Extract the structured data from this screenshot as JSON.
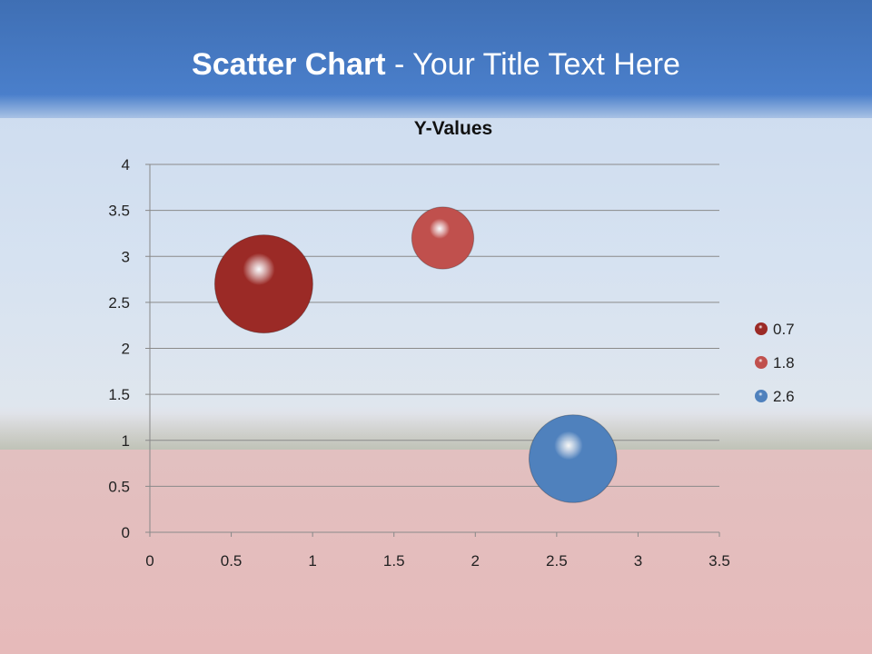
{
  "slide": {
    "title_bold": "Scatter Chart",
    "title_rest": " - Your Title Text Here"
  },
  "chart_data": {
    "type": "bubble",
    "title": "Y-Values",
    "xlim": [
      0,
      3.5
    ],
    "ylim": [
      0,
      4
    ],
    "x_ticks": [
      "0",
      "0.5",
      "1",
      "1.5",
      "2",
      "2.5",
      "3",
      "3.5"
    ],
    "y_ticks": [
      "0",
      "0.5",
      "1",
      "1.5",
      "2",
      "2.5",
      "3",
      "3.5",
      "4"
    ],
    "grid": "horizontal",
    "legend_placement": "right",
    "series": [
      {
        "name": "0.7",
        "x": 0.7,
        "y": 2.7,
        "size": 10,
        "color": "#9b2a26"
      },
      {
        "name": "1.8",
        "x": 1.8,
        "y": 3.2,
        "size": 4,
        "color": "#c0504d"
      },
      {
        "name": "2.6",
        "x": 2.6,
        "y": 0.8,
        "size": 8,
        "color": "#4f81bd"
      }
    ]
  }
}
